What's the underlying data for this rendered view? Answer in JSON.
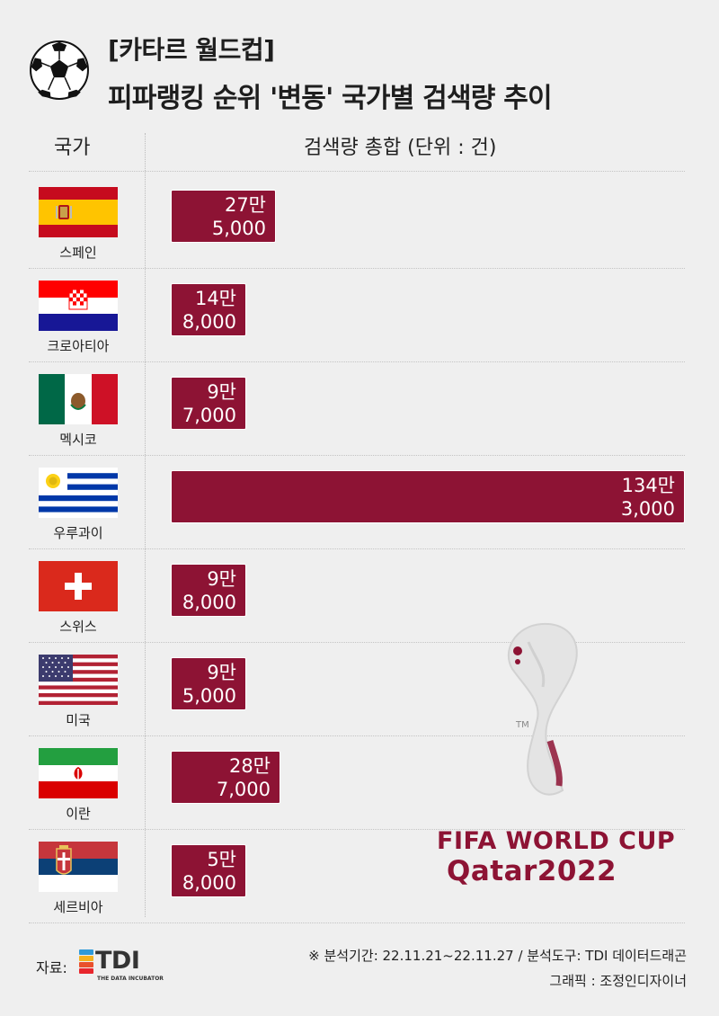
{
  "title": {
    "line1": "[카타르 월드컵]",
    "line2": "피파랭킹 순위 '변동' 국가별 검색량 추이"
  },
  "columns": {
    "country": "국가",
    "search": "검색량 총합 (단위 : 건)"
  },
  "chart_data": {
    "type": "bar",
    "orientation": "horizontal",
    "title": "피파랭킹 순위 '변동' 국가별 검색량 추이",
    "categories": [
      "스페인",
      "크로아티아",
      "멕시코",
      "우루과이",
      "스위스",
      "미국",
      "이란",
      "세르비아"
    ],
    "values": [
      275000,
      148000,
      97000,
      1343000,
      98000,
      95000,
      287000,
      58000
    ],
    "labels": [
      [
        "27만",
        "5,000"
      ],
      [
        "14만",
        "8,000"
      ],
      [
        "9만",
        "7,000"
      ],
      [
        "134만",
        "3,000"
      ],
      [
        "9만",
        "8,000"
      ],
      [
        "9만",
        "5,000"
      ],
      [
        "28만",
        "7,000"
      ],
      [
        "5만",
        "8,000"
      ]
    ],
    "unit": "건",
    "bar_color": "#8d1334",
    "xlim": [
      0,
      1343000
    ]
  },
  "countries": [
    {
      "name": "스페인",
      "flag": "spain-flag"
    },
    {
      "name": "크로아티아",
      "flag": "croatia-flag"
    },
    {
      "name": "멕시코",
      "flag": "mexico-flag"
    },
    {
      "name": "우루과이",
      "flag": "uruguay-flag"
    },
    {
      "name": "스위스",
      "flag": "switzerland-flag"
    },
    {
      "name": "미국",
      "flag": "usa-flag"
    },
    {
      "name": "이란",
      "flag": "iran-flag"
    },
    {
      "name": "세르비아",
      "flag": "serbia-flag"
    }
  ],
  "emblem": {
    "line1": "FIFA WORLD CUP",
    "line2": "Qatar2022",
    "color": "#8d1334"
  },
  "footer": {
    "source_label": "자료:",
    "logo_text": "TDI",
    "logo_sub": "THE DATA INCUBATOR",
    "logo_colors": [
      "#2f9ad8",
      "#f4b21e",
      "#e9502c",
      "#e8262d"
    ],
    "note1": "※ 분석기간: 22.11.21~22.11.27  / 분석도구: TDI 데이터드래곤",
    "note2": "그래픽 : 조정인디자이너"
  }
}
